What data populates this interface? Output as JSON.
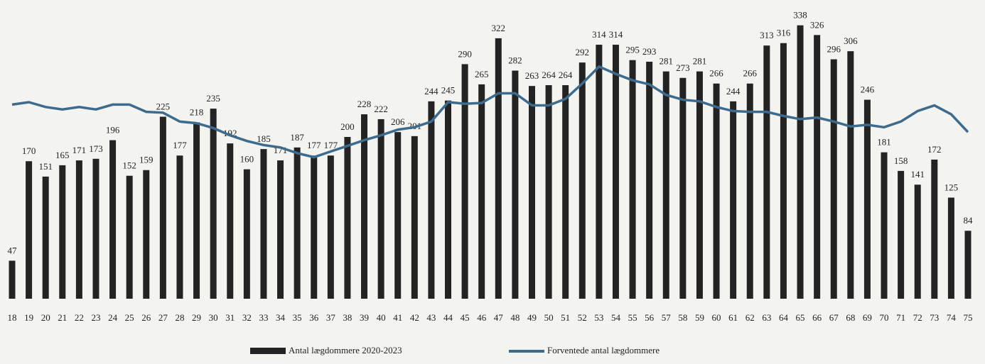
{
  "chart_data": {
    "type": "bar",
    "categories": [
      "18",
      "19",
      "20",
      "21",
      "22",
      "23",
      "24",
      "25",
      "26",
      "27",
      "28",
      "29",
      "30",
      "31",
      "32",
      "33",
      "34",
      "35",
      "36",
      "37",
      "38",
      "39",
      "40",
      "41",
      "42",
      "43",
      "44",
      "45",
      "46",
      "47",
      "48",
      "49",
      "50",
      "51",
      "52",
      "53",
      "54",
      "55",
      "56",
      "57",
      "58",
      "59",
      "60",
      "61",
      "62",
      "63",
      "64",
      "65",
      "66",
      "67",
      "68",
      "69",
      "70",
      "71",
      "72",
      "73",
      "74",
      "75"
    ],
    "series": [
      {
        "name": "Antal lægdommere 2020-2023",
        "type": "bar",
        "color": "#232323",
        "values": [
          47,
          170,
          151,
          165,
          171,
          173,
          196,
          152,
          159,
          225,
          177,
          218,
          235,
          192,
          160,
          185,
          171,
          187,
          177,
          177,
          200,
          228,
          222,
          206,
          201,
          244,
          245,
          290,
          265,
          322,
          282,
          263,
          264,
          264,
          292,
          314,
          314,
          295,
          293,
          281,
          273,
          281,
          266,
          244,
          266,
          313,
          316,
          338,
          326,
          296,
          306,
          246,
          181,
          158,
          141,
          172,
          125,
          84
        ]
      },
      {
        "name": "Forventede antal lægdommere",
        "type": "line",
        "color": "#3d6b8e",
        "values": [
          240,
          243,
          237,
          234,
          237,
          234,
          240,
          240,
          231,
          230,
          219,
          217,
          211,
          202,
          195,
          190,
          187,
          180,
          175,
          182,
          189,
          196,
          202,
          209,
          212,
          219,
          243,
          241,
          242,
          254,
          254,
          239,
          239,
          247,
          266,
          287,
          278,
          270,
          265,
          252,
          246,
          244,
          237,
          232,
          231,
          231,
          226,
          222,
          224,
          219,
          213,
          215,
          212,
          219,
          232,
          239,
          228,
          206
        ]
      }
    ],
    "legend": "bottom"
  }
}
